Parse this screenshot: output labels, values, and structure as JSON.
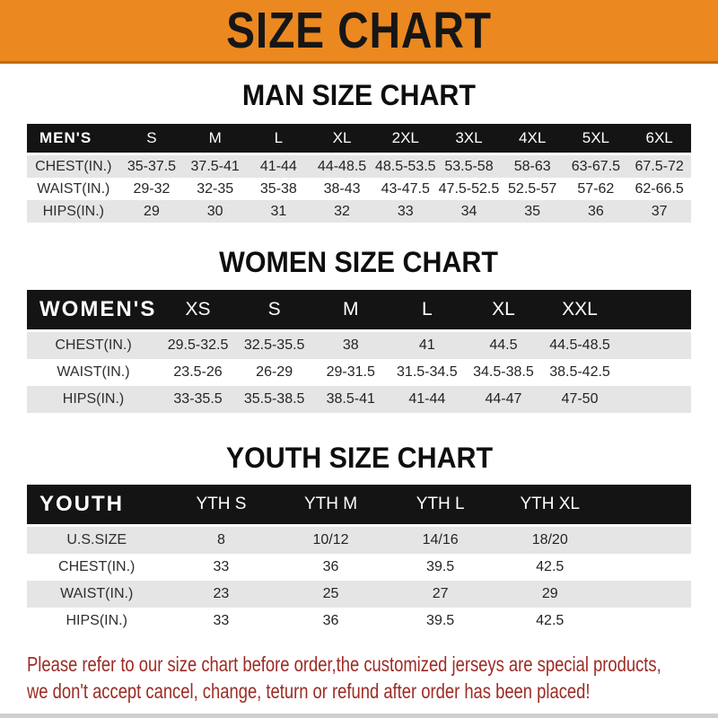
{
  "banner": {
    "title": "SIZE CHART"
  },
  "colors": {
    "orange": "#ec8820",
    "orangeDark": "#bc6d12",
    "black": "#141414",
    "gray": "#e5e5e5",
    "red": "#9c2b24"
  },
  "sections": [
    {
      "heading": "MAN SIZE CHART",
      "table": {
        "name": "MEN'S",
        "columns": [
          "S",
          "M",
          "L",
          "XL",
          "2XL",
          "3XL",
          "4XL",
          "5XL",
          "6XL"
        ],
        "rows": [
          {
            "label": "CHEST(IN.)",
            "values": [
              "35-37.5",
              "37.5-41",
              "41-44",
              "44-48.5",
              "48.5-53.5",
              "53.5-58",
              "58-63",
              "63-67.5",
              "67.5-72"
            ]
          },
          {
            "label": "WAIST(IN.)",
            "values": [
              "29-32",
              "32-35",
              "35-38",
              "38-43",
              "43-47.5",
              "47.5-52.5",
              "52.5-57",
              "57-62",
              "62-66.5"
            ]
          },
          {
            "label": "HIPS(IN.)",
            "values": [
              "29",
              "30",
              "31",
              "32",
              "33",
              "34",
              "35",
              "36",
              "37"
            ]
          }
        ]
      }
    },
    {
      "heading": "WOMEN SIZE CHART",
      "table": {
        "name": "WOMEN'S",
        "columns": [
          "XS",
          "S",
          "M",
          "L",
          "XL",
          "XXL"
        ],
        "rows": [
          {
            "label": "CHEST(IN.)",
            "values": [
              "29.5-32.5",
              "32.5-35.5",
              "38",
              "41",
              "44.5",
              "44.5-48.5"
            ]
          },
          {
            "label": "WAIST(IN.)",
            "values": [
              "23.5-26",
              "26-29",
              "29-31.5",
              "31.5-34.5",
              "34.5-38.5",
              "38.5-42.5"
            ]
          },
          {
            "label": "HIPS(IN.)",
            "values": [
              "33-35.5",
              "35.5-38.5",
              "38.5-41",
              "41-44",
              "44-47",
              "47-50"
            ]
          }
        ]
      }
    },
    {
      "heading": "YOUTH SIZE CHART",
      "table": {
        "name": "YOUTH",
        "columns": [
          "YTH S",
          "YTH M",
          "YTH L",
          "YTH XL"
        ],
        "rows": [
          {
            "label": "U.S.SIZE",
            "values": [
              "8",
              "10/12",
              "14/16",
              "18/20"
            ]
          },
          {
            "label": "CHEST(IN.)",
            "values": [
              "33",
              "36",
              "39.5",
              "42.5"
            ]
          },
          {
            "label": "WAIST(IN.)",
            "values": [
              "23",
              "25",
              "27",
              "29"
            ]
          },
          {
            "label": "HIPS(IN.)",
            "values": [
              "33",
              "36",
              "39.5",
              "42.5"
            ]
          }
        ]
      }
    }
  ],
  "disclaimer": {
    "line1": "Please refer to our size chart before order,the customized jerseys are special products,",
    "line2": "we don't accept cancel, change, teturn or refund after order has been placed!"
  }
}
